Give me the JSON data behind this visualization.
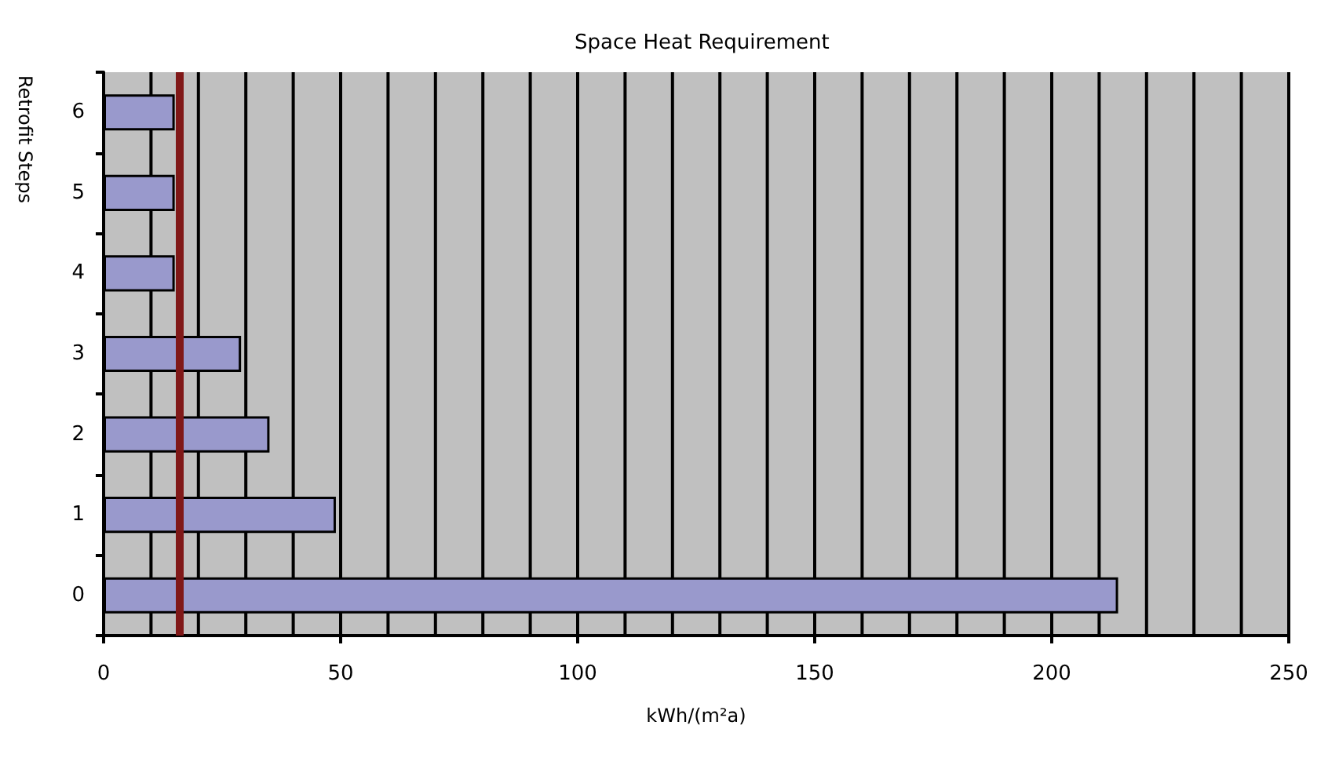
{
  "chart_data": {
    "type": "bar",
    "orientation": "horizontal",
    "title": "Space Heat Requirement",
    "xlabel": "kWh/(m²a)",
    "ylabel": "Retrofit Steps",
    "categories": [
      "6",
      "5",
      "4",
      "3",
      "2",
      "1",
      "0"
    ],
    "values": [
      15,
      15,
      15,
      29,
      35,
      49,
      214
    ],
    "color": "#9999cc",
    "xlim": [
      0,
      250
    ],
    "xticks": [
      0,
      {
        "value": 10,
        "label": null
      },
      {
        "value": 20,
        "label": null
      },
      {
        "value": 30,
        "label": null
      },
      {
        "value": 40,
        "label": null
      },
      50,
      {
        "value": 60,
        "label": null
      },
      {
        "value": 70,
        "label": null
      },
      {
        "value": 80,
        "label": null
      },
      {
        "value": 90,
        "label": null
      },
      100,
      {
        "value": 110,
        "label": null
      },
      {
        "value": 120,
        "label": null
      },
      {
        "value": 130,
        "label": null
      },
      {
        "value": 140,
        "label": null
      },
      150,
      {
        "value": 160,
        "label": null
      },
      {
        "value": 170,
        "label": null
      },
      {
        "value": 180,
        "label": null
      },
      {
        "value": 190,
        "label": null
      },
      200,
      {
        "value": 210,
        "label": null
      },
      {
        "value": 220,
        "label": null
      },
      {
        "value": 230,
        "label": null
      },
      {
        "value": 240,
        "label": null
      },
      250
    ],
    "ref_lines": [
      {
        "axis": "x",
        "value": 16,
        "color": "#801818"
      }
    ],
    "grid": "x"
  }
}
